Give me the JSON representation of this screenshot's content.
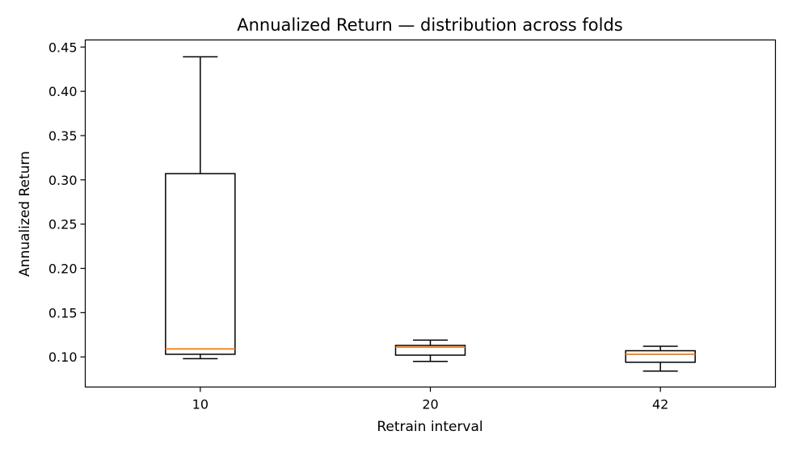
{
  "chart_data": {
    "type": "box",
    "title": "Annualized Return — distribution across folds",
    "xlabel": "Retrain interval",
    "ylabel": "Annualized Return",
    "ylim": [
      0.066,
      0.458
    ],
    "yticks": [
      "0.10",
      "0.15",
      "0.20",
      "0.25",
      "0.30",
      "0.35",
      "0.40",
      "0.45"
    ],
    "grid": false,
    "categories": [
      "10",
      "20",
      "42"
    ],
    "boxes": [
      {
        "category": "10",
        "whisker_low": 0.098,
        "q1": 0.103,
        "median": 0.109,
        "q3": 0.307,
        "whisker_high": 0.439
      },
      {
        "category": "20",
        "whisker_low": 0.095,
        "q1": 0.102,
        "median": 0.111,
        "q3": 0.113,
        "whisker_high": 0.119
      },
      {
        "category": "42",
        "whisker_low": 0.084,
        "q1": 0.094,
        "median": 0.103,
        "q3": 0.107,
        "whisker_high": 0.112
      }
    ],
    "colors": {
      "box": "#000000",
      "median": "#ff7f0e"
    }
  }
}
